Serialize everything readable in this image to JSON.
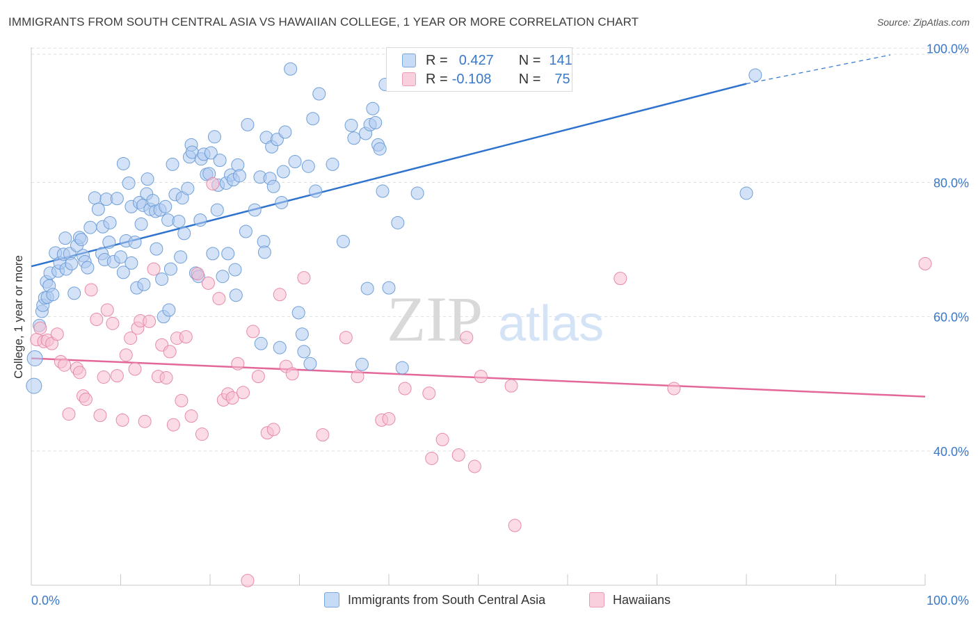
{
  "title": "IMMIGRANTS FROM SOUTH CENTRAL ASIA VS HAWAIIAN COLLEGE, 1 YEAR OR MORE CORRELATION CHART",
  "source": "Source: ZipAtlas.com",
  "watermark": {
    "zip": "ZIP",
    "atlas": "atlas"
  },
  "legend": {
    "rows": [
      {
        "r_label": "R =",
        "r_value": "0.427",
        "n_label": "N =",
        "n_value": "141"
      },
      {
        "r_label": "R =",
        "r_value": "-0.108",
        "n_label": "N =",
        "n_value": "75"
      }
    ]
  },
  "bottom_legend": [
    "Immigrants from South Central Asia",
    "Hawaiians"
  ],
  "chart_data": {
    "type": "scatter",
    "title": "IMMIGRANTS FROM SOUTH CENTRAL ASIA VS HAWAIIAN COLLEGE, 1 YEAR OR MORE CORRELATION CHART",
    "xlabel": "",
    "ylabel": "College, 1 year or more",
    "xlim": [
      0,
      100
    ],
    "ylim": [
      20,
      102
    ],
    "x_tick_labels": [
      "0.0%",
      "100.0%"
    ],
    "y_ticks": [
      40,
      60,
      80,
      100
    ],
    "y_tick_labels": [
      "40.0%",
      "60.0%",
      "80.0%",
      "100.0%"
    ],
    "grid": true,
    "legend_position": "top-center",
    "colors": {
      "blue_fill": "#aecbf0",
      "blue_stroke": "#6f9fd8",
      "blue_line": "#2f73cf",
      "pink_fill": "#f7bfd2",
      "pink_stroke": "#e78aaa",
      "pink_line": "#e4679a",
      "tick_label": "#3a78c9"
    },
    "series": [
      {
        "name": "Immigrants from South Central Asia",
        "color": "#aecbf0",
        "trend": {
          "x": [
            0,
            80
          ],
          "y": [
            67.5,
            94.7
          ],
          "dashed_to": [
            100,
            101.5
          ]
        },
        "points": [
          [
            0.3,
            49.7
          ],
          [
            0.4,
            53.8
          ],
          [
            0.9,
            58.7
          ],
          [
            1.2,
            60.8
          ],
          [
            1.3,
            61.7
          ],
          [
            1.5,
            62.8
          ],
          [
            1.7,
            65.2
          ],
          [
            1.8,
            62.9
          ],
          [
            2.0,
            64.6
          ],
          [
            2.1,
            66.5
          ],
          [
            2.4,
            63.3
          ],
          [
            2.7,
            69.5
          ],
          [
            3.0,
            66.8
          ],
          [
            3.2,
            68.0
          ],
          [
            3.6,
            69.3
          ],
          [
            3.8,
            71.7
          ],
          [
            3.9,
            67.1
          ],
          [
            4.3,
            69.4
          ],
          [
            4.5,
            67.9
          ],
          [
            4.8,
            63.5
          ],
          [
            5.1,
            70.6
          ],
          [
            5.4,
            71.8
          ],
          [
            5.6,
            71.5
          ],
          [
            5.8,
            69.1
          ],
          [
            6.0,
            68.2
          ],
          [
            6.3,
            67.3
          ],
          [
            6.6,
            73.3
          ],
          [
            7.1,
            77.7
          ],
          [
            7.5,
            76.0
          ],
          [
            7.9,
            69.4
          ],
          [
            8.0,
            73.4
          ],
          [
            8.2,
            68.5
          ],
          [
            8.4,
            77.5
          ],
          [
            8.7,
            71.1
          ],
          [
            8.8,
            74.0
          ],
          [
            9.2,
            68.2
          ],
          [
            9.6,
            77.6
          ],
          [
            10.0,
            68.9
          ],
          [
            10.3,
            66.6
          ],
          [
            10.3,
            82.8
          ],
          [
            10.6,
            71.3
          ],
          [
            10.9,
            79.9
          ],
          [
            11.2,
            76.4
          ],
          [
            11.2,
            68.0
          ],
          [
            11.6,
            71.1
          ],
          [
            11.8,
            64.3
          ],
          [
            12.1,
            77.0
          ],
          [
            12.3,
            73.8
          ],
          [
            12.5,
            76.6
          ],
          [
            12.6,
            64.8
          ],
          [
            12.9,
            78.3
          ],
          [
            13.0,
            80.5
          ],
          [
            13.3,
            76.0
          ],
          [
            13.6,
            77.3
          ],
          [
            13.9,
            75.7
          ],
          [
            14.0,
            70.1
          ],
          [
            14.4,
            75.9
          ],
          [
            14.6,
            65.6
          ],
          [
            14.8,
            60.0
          ],
          [
            15.0,
            76.4
          ],
          [
            15.3,
            74.4
          ],
          [
            15.4,
            61.0
          ],
          [
            15.6,
            67.1
          ],
          [
            15.8,
            82.7
          ],
          [
            16.1,
            78.2
          ],
          [
            16.5,
            74.2
          ],
          [
            16.7,
            68.9
          ],
          [
            16.9,
            77.7
          ],
          [
            17.1,
            72.4
          ],
          [
            17.5,
            79.1
          ],
          [
            17.7,
            83.8
          ],
          [
            17.9,
            85.6
          ],
          [
            18.0,
            84.5
          ],
          [
            18.4,
            66.5
          ],
          [
            18.7,
            66.0
          ],
          [
            18.9,
            74.4
          ],
          [
            19.0,
            83.5
          ],
          [
            19.3,
            84.2
          ],
          [
            19.6,
            81.2
          ],
          [
            19.9,
            81.3
          ],
          [
            20.1,
            84.4
          ],
          [
            20.3,
            69.4
          ],
          [
            20.5,
            86.8
          ],
          [
            20.8,
            75.9
          ],
          [
            20.9,
            79.6
          ],
          [
            21.1,
            83.3
          ],
          [
            21.4,
            66.0
          ],
          [
            21.8,
            79.9
          ],
          [
            22.0,
            69.4
          ],
          [
            22.3,
            81.1
          ],
          [
            22.6,
            80.4
          ],
          [
            22.8,
            67.0
          ],
          [
            22.9,
            63.2
          ],
          [
            23.1,
            82.6
          ],
          [
            23.3,
            81.0
          ],
          [
            24.0,
            72.7
          ],
          [
            24.2,
            88.6
          ],
          [
            25.0,
            75.9
          ],
          [
            25.6,
            80.8
          ],
          [
            25.7,
            56.0
          ],
          [
            26.0,
            71.2
          ],
          [
            26.1,
            69.6
          ],
          [
            26.3,
            86.7
          ],
          [
            26.7,
            80.6
          ],
          [
            26.9,
            85.3
          ],
          [
            27.1,
            79.4
          ],
          [
            27.5,
            86.4
          ],
          [
            27.8,
            55.4
          ],
          [
            28.0,
            77.0
          ],
          [
            28.2,
            81.6
          ],
          [
            28.4,
            87.5
          ],
          [
            29.0,
            96.9
          ],
          [
            29.5,
            83.1
          ],
          [
            29.9,
            60.6
          ],
          [
            30.3,
            57.4
          ],
          [
            30.5,
            54.8
          ],
          [
            31.0,
            82.4
          ],
          [
            31.2,
            53.0
          ],
          [
            31.5,
            89.5
          ],
          [
            31.8,
            78.7
          ],
          [
            32.2,
            93.2
          ],
          [
            33.7,
            82.7
          ],
          [
            34.9,
            71.2
          ],
          [
            35.8,
            88.5
          ],
          [
            36.1,
            86.6
          ],
          [
            37.0,
            52.9
          ],
          [
            37.4,
            87.3
          ],
          [
            37.6,
            64.2
          ],
          [
            37.9,
            88.6
          ],
          [
            38.2,
            91.0
          ],
          [
            38.5,
            88.9
          ],
          [
            38.8,
            85.6
          ],
          [
            39.0,
            85.0
          ],
          [
            39.3,
            78.7
          ],
          [
            39.6,
            94.6
          ],
          [
            40.0,
            64.3
          ],
          [
            41.0,
            74.0
          ],
          [
            41.5,
            52.4
          ],
          [
            43.2,
            78.4
          ],
          [
            80.0,
            78.4
          ],
          [
            81.0,
            96.0
          ]
        ]
      },
      {
        "name": "Hawaiians",
        "color": "#f7bfd2",
        "trend": {
          "x": [
            0,
            100
          ],
          "y": [
            53.8,
            48.1
          ]
        },
        "points": [
          [
            0.6,
            56.6
          ],
          [
            1.0,
            58.3
          ],
          [
            1.4,
            56.3
          ],
          [
            1.8,
            56.5
          ],
          [
            2.3,
            56.0
          ],
          [
            2.9,
            57.4
          ],
          [
            3.3,
            53.3
          ],
          [
            3.7,
            52.8
          ],
          [
            4.2,
            45.5
          ],
          [
            5.1,
            52.3
          ],
          [
            5.4,
            51.7
          ],
          [
            5.8,
            48.2
          ],
          [
            6.1,
            47.7
          ],
          [
            6.7,
            64.0
          ],
          [
            7.3,
            59.6
          ],
          [
            7.7,
            45.3
          ],
          [
            8.1,
            51.0
          ],
          [
            8.5,
            61.0
          ],
          [
            9.1,
            59.0
          ],
          [
            9.6,
            51.2
          ],
          [
            10.2,
            44.6
          ],
          [
            10.6,
            54.3
          ],
          [
            11.1,
            56.8
          ],
          [
            11.6,
            52.2
          ],
          [
            11.9,
            58.3
          ],
          [
            12.2,
            59.4
          ],
          [
            12.7,
            44.4
          ],
          [
            13.2,
            59.3
          ],
          [
            13.7,
            67.1
          ],
          [
            14.2,
            51.1
          ],
          [
            14.6,
            55.8
          ],
          [
            15.1,
            50.9
          ],
          [
            15.5,
            54.8
          ],
          [
            15.9,
            43.9
          ],
          [
            16.3,
            56.8
          ],
          [
            16.8,
            47.5
          ],
          [
            17.3,
            57.0
          ],
          [
            17.9,
            45.2
          ],
          [
            18.6,
            66.4
          ],
          [
            19.1,
            42.5
          ],
          [
            19.8,
            65.0
          ],
          [
            20.3,
            79.8
          ],
          [
            21.0,
            62.7
          ],
          [
            21.5,
            47.6
          ],
          [
            22.0,
            48.5
          ],
          [
            22.5,
            47.9
          ],
          [
            23.1,
            53.0
          ],
          [
            23.7,
            48.7
          ],
          [
            24.2,
            20.7
          ],
          [
            24.8,
            57.8
          ],
          [
            25.4,
            51.1
          ],
          [
            26.4,
            42.7
          ],
          [
            27.1,
            43.2
          ],
          [
            27.8,
            63.3
          ],
          [
            28.5,
            52.6
          ],
          [
            29.2,
            51.5
          ],
          [
            30.5,
            65.8
          ],
          [
            32.6,
            42.4
          ],
          [
            35.2,
            56.9
          ],
          [
            36.5,
            51.1
          ],
          [
            39.2,
            44.6
          ],
          [
            40.0,
            44.8
          ],
          [
            41.8,
            49.3
          ],
          [
            44.5,
            48.6
          ],
          [
            44.8,
            38.9
          ],
          [
            46.0,
            41.7
          ],
          [
            47.8,
            39.4
          ],
          [
            48.7,
            56.9
          ],
          [
            49.6,
            37.7
          ],
          [
            50.3,
            51.1
          ],
          [
            53.7,
            49.7
          ],
          [
            54.1,
            28.9
          ],
          [
            65.9,
            65.7
          ],
          [
            71.9,
            49.3
          ],
          [
            100.0,
            67.9
          ]
        ]
      }
    ]
  }
}
